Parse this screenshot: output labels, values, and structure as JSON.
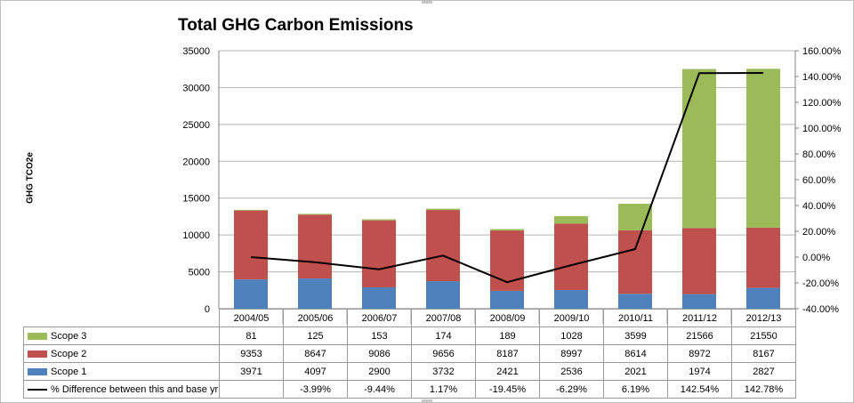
{
  "chart_data": {
    "type": "bar",
    "stacked": true,
    "title": "Total GHG Carbon Emissions",
    "ylabel": "GHG TCO2e",
    "categories": [
      "2004/05",
      "2005/06",
      "2006/07",
      "2007/08",
      "2008/09",
      "2009/10",
      "2010/11",
      "2011/12",
      "2012/13"
    ],
    "ylim": [
      0,
      35000
    ],
    "yticks": [
      "0",
      "5000",
      "10000",
      "15000",
      "20000",
      "25000",
      "30000",
      "35000"
    ],
    "y2lim": [
      -40,
      160
    ],
    "y2ticks": [
      "-40.00%",
      "-20.00%",
      "0.00%",
      "20.00%",
      "40.00%",
      "60.00%",
      "80.00%",
      "100.00%",
      "120.00%",
      "140.00%",
      "160.00%"
    ],
    "grid": true,
    "series": [
      {
        "name": "Scope 1",
        "color": "#4f81bd",
        "values": [
          3971,
          4097,
          2900,
          3732,
          2421,
          2536,
          2021,
          1974,
          2827
        ]
      },
      {
        "name": "Scope 2",
        "color": "#c0504d",
        "values": [
          9353,
          8647,
          9086,
          9656,
          8187,
          8997,
          8614,
          8972,
          8167
        ]
      },
      {
        "name": "Scope 3",
        "color": "#9bbb59",
        "values": [
          81,
          125,
          153,
          174,
          189,
          1028,
          3599,
          21566,
          21550
        ]
      }
    ],
    "line_series": {
      "name": "% Difference between this and base yr",
      "axis": "secondary",
      "color": "#000000",
      "values": [
        0,
        -3.99,
        -9.44,
        1.17,
        -19.45,
        -6.29,
        6.19,
        142.54,
        142.78
      ],
      "labels": [
        "",
        "-3.99%",
        "-9.44%",
        "1.17%",
        "-19.45%",
        "-6.29%",
        "6.19%",
        "142.54%",
        "142.78%"
      ]
    },
    "data_table": {
      "row_order": [
        "Scope 3",
        "Scope 2",
        "Scope 1",
        "% Difference between this and base yr"
      ],
      "values": {
        "Scope 3": [
          "81",
          "125",
          "153",
          "174",
          "189",
          "1028",
          "3599",
          "21566",
          "21550"
        ],
        "Scope 2": [
          "9353",
          "8647",
          "9086",
          "9656",
          "8187",
          "8997",
          "8614",
          "8972",
          "8167"
        ],
        "Scope 1": [
          "3971",
          "4097",
          "2900",
          "3732",
          "2421",
          "2536",
          "2021",
          "1974",
          "2827"
        ]
      }
    }
  }
}
